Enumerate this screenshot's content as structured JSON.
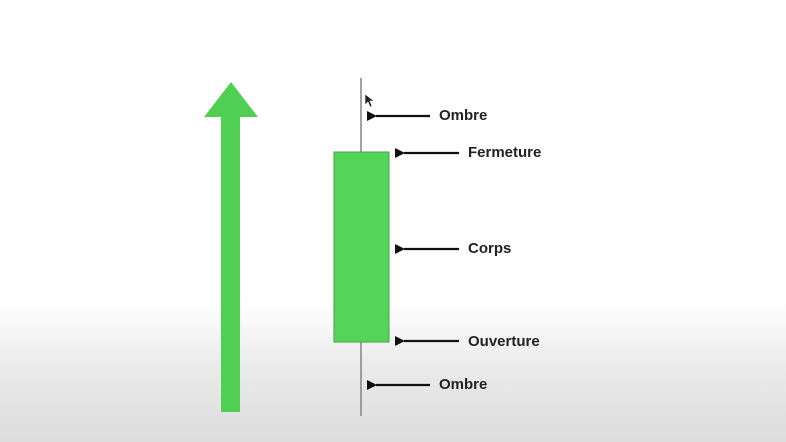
{
  "colors": {
    "candle_fill": "#55d45a",
    "candle_stroke": "#3fa844",
    "trend_arrow": "#4fd053",
    "wick": "#8a8a8a",
    "pointer": "#111111"
  },
  "icons": {
    "trend": "up-arrow-icon",
    "pointer": "left-arrow-icon"
  },
  "labels": {
    "upper_shadow": "Ombre",
    "close": "Fermeture",
    "body": "Corps",
    "open": "Ouverture",
    "lower_shadow": "Ombre"
  }
}
